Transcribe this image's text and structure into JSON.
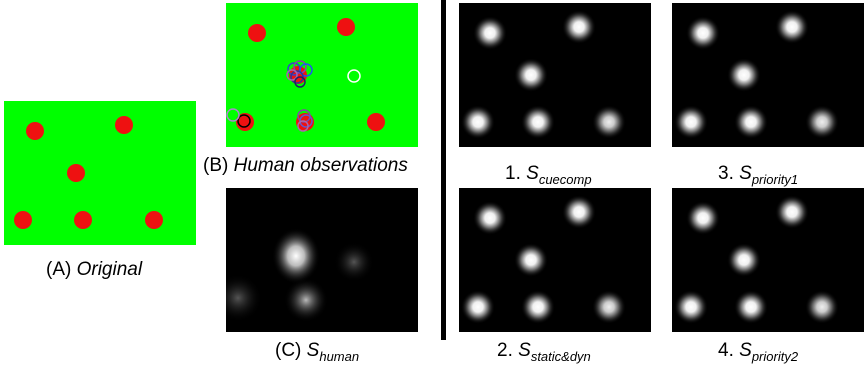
{
  "colors": {
    "background_green": "#00ff00",
    "dot_red": "#ee1111",
    "saliency_background": "#000000",
    "divider": "#000000"
  },
  "captions": {
    "a": {
      "prefix": "(A) ",
      "text": "Original"
    },
    "b": {
      "prefix": "(B) ",
      "text": "Human observations"
    },
    "c": {
      "prefix": "(C) ",
      "main": "S",
      "sub": "human"
    },
    "m1": {
      "prefix": "1. ",
      "main": "S",
      "sub": "cuecomp"
    },
    "m2": {
      "prefix": "2. ",
      "main": "S",
      "sub": "static&dyn"
    },
    "m3": {
      "prefix": "3. ",
      "main": "S",
      "sub": "priority1"
    },
    "m4": {
      "prefix": "4. ",
      "main": "S",
      "sub": "priority2"
    }
  }
}
